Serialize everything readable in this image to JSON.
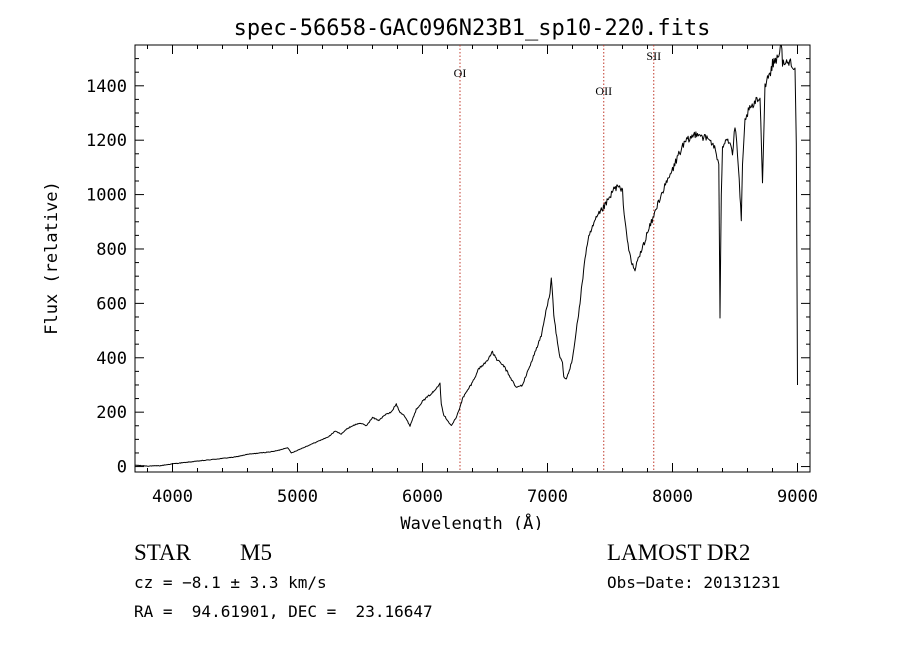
{
  "chart_data": {
    "type": "line",
    "title": "spec-56658-GAC096N23B1_sp10-220.fits",
    "xlabel": "Wavelength (Å)",
    "ylabel": "Flux (relative)",
    "xlim": [
      3700,
      9100
    ],
    "ylim": [
      -20,
      1550
    ],
    "x_ticks": [
      4000,
      5000,
      6000,
      7000,
      8000,
      9000
    ],
    "y_ticks": [
      0,
      200,
      400,
      600,
      800,
      1000,
      1200,
      1400
    ],
    "x_tick_labels": [
      "4000",
      "5000",
      "6000",
      "7000",
      "8000",
      "9000"
    ],
    "y_tick_labels": [
      "0",
      "200",
      "400",
      "600",
      "800",
      "1000",
      "1200",
      "1400"
    ],
    "grid": false,
    "lines": [
      {
        "label": "OI",
        "x": 6300
      },
      {
        "label": "OII",
        "x": 7450
      },
      {
        "label": "SII",
        "x": 7850
      }
    ],
    "series": [
      {
        "x": [
          3700,
          3800,
          3900,
          4000,
          4100,
          4200,
          4300,
          4400,
          4500,
          4600,
          4700,
          4800,
          4850,
          4920,
          4950,
          5000,
          5100,
          5200,
          5250,
          5300,
          5350,
          5400,
          5440,
          5500,
          5550,
          5600,
          5650,
          5700,
          5750,
          5790,
          5820,
          5850,
          5900,
          5950,
          6000,
          6050,
          6100,
          6140,
          6150,
          6170,
          6200,
          6230,
          6270,
          6300,
          6320,
          6360,
          6400,
          6450,
          6500,
          6560,
          6600,
          6650,
          6700,
          6750,
          6800,
          6850,
          6900,
          6950,
          7000,
          7020,
          7030,
          7050,
          7080,
          7100,
          7120,
          7130,
          7150,
          7180,
          7200,
          7230,
          7260,
          7300,
          7330,
          7360,
          7400,
          7430,
          7460,
          7500,
          7530,
          7560,
          7600,
          7620,
          7650,
          7670,
          7700,
          7720,
          7750,
          7800,
          7850,
          7870,
          7900,
          7950,
          8000,
          8050,
          8100,
          8150,
          8200,
          8250,
          8300,
          8330,
          8350,
          8370,
          8380,
          8390,
          8400,
          8430,
          8460,
          8480,
          8500,
          8520,
          8540,
          8550,
          8560,
          8580,
          8600,
          8650,
          8700,
          8720,
          8740,
          8760,
          8790,
          8800,
          8830,
          8850,
          8870,
          8880,
          8900,
          8950,
          8980,
          8990,
          9000
        ],
        "y": [
          5,
          2,
          3,
          10,
          15,
          20,
          25,
          30,
          35,
          45,
          50,
          55,
          60,
          70,
          50,
          60,
          80,
          100,
          110,
          130,
          120,
          140,
          150,
          160,
          150,
          180,
          170,
          190,
          200,
          230,
          200,
          190,
          150,
          210,
          240,
          260,
          280,
          310,
          230,
          190,
          170,
          150,
          180,
          220,
          250,
          280,
          310,
          360,
          380,
          420,
          390,
          370,
          330,
          290,
          300,
          360,
          420,
          480,
          600,
          640,
          700,
          560,
          450,
          400,
          380,
          330,
          320,
          360,
          400,
          500,
          600,
          770,
          840,
          880,
          920,
          940,
          960,
          990,
          1020,
          1030,
          1010,
          900,
          800,
          750,
          720,
          760,
          790,
          860,
          920,
          950,
          990,
          1040,
          1090,
          1150,
          1190,
          1210,
          1230,
          1210,
          1200,
          1180,
          1150,
          1100,
          550,
          1000,
          1180,
          1210,
          1190,
          1150,
          1250,
          1150,
          1000,
          900,
          1100,
          1270,
          1300,
          1330,
          1360,
          1050,
          1400,
          1430,
          1460,
          1480,
          1500,
          1520,
          1550,
          1490,
          1480,
          1490,
          1460,
          1200,
          300
        ]
      }
    ]
  },
  "info": {
    "object_type": "STAR",
    "subclass": "M5",
    "survey": "LAMOST DR2",
    "cz": "cz = −8.1 ± 3.3 km/s",
    "obs_date": "Obs−Date: 20131231",
    "coords": "RA =  94.61901, DEC =  23.16647"
  }
}
